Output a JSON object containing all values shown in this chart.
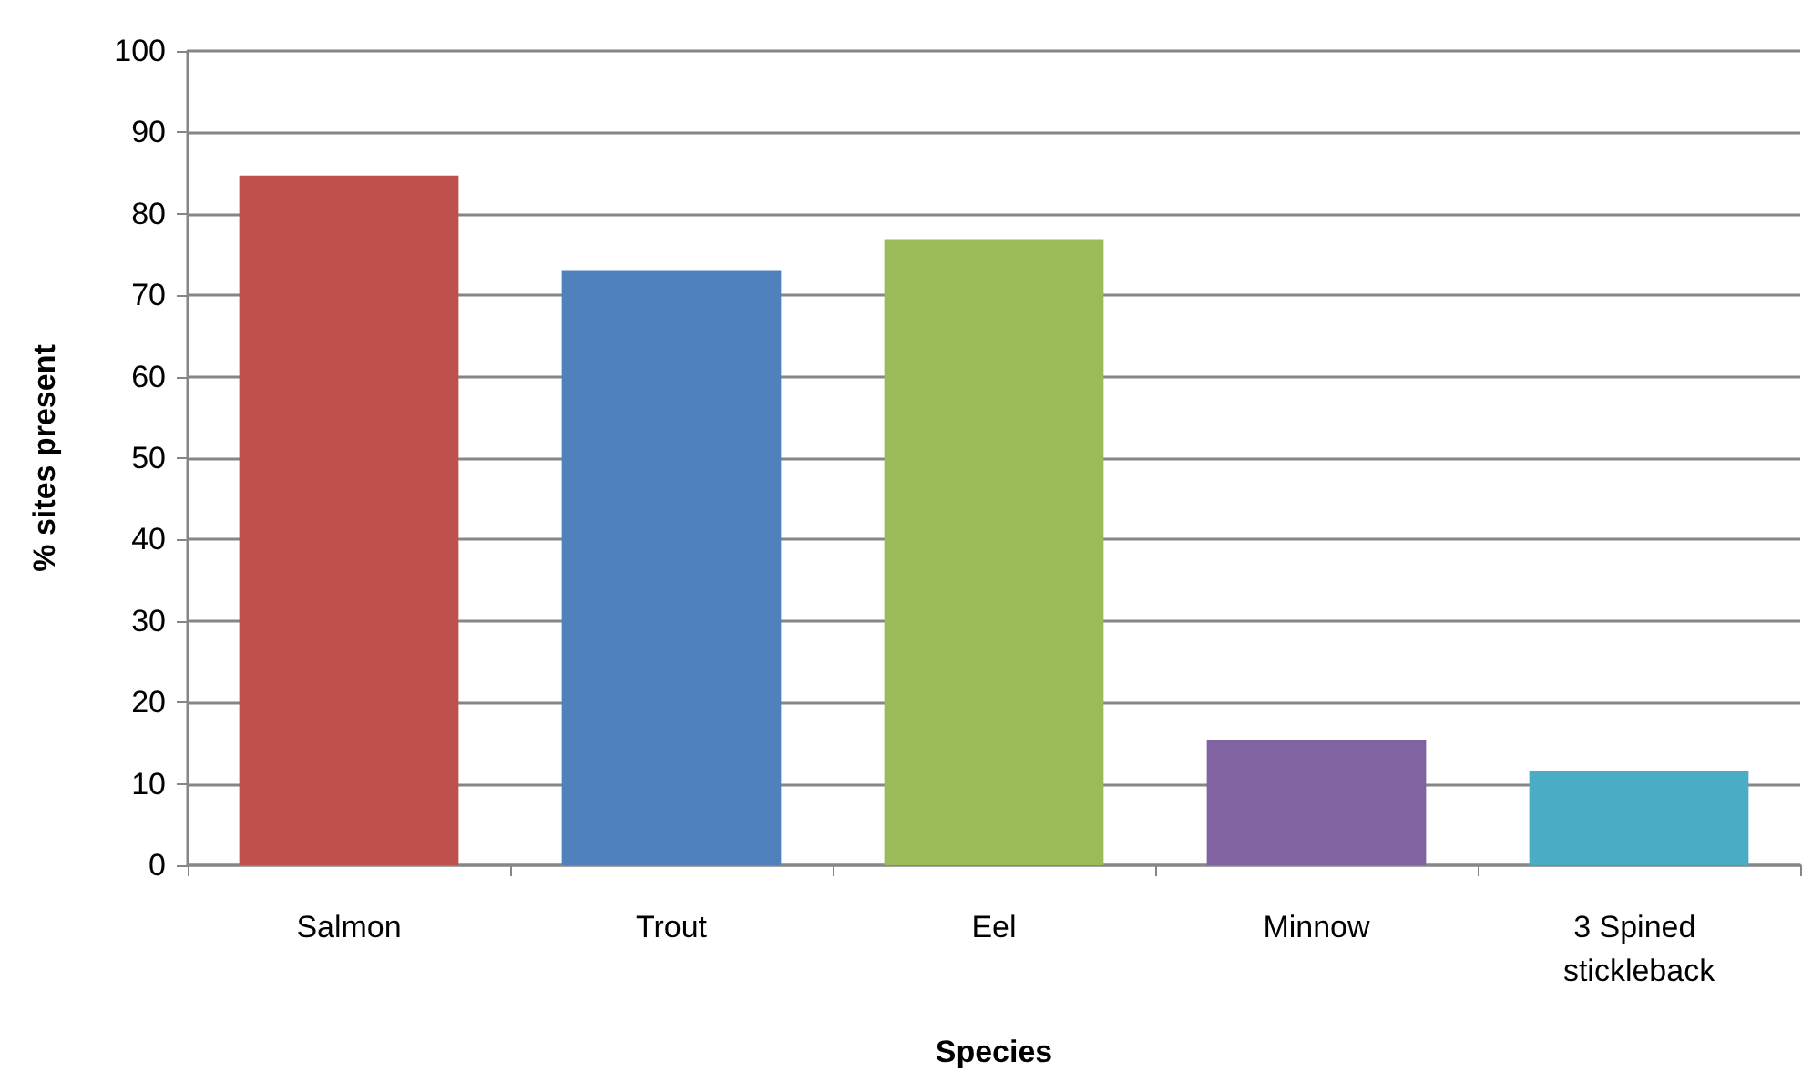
{
  "chart_data": {
    "type": "bar",
    "xlabel": "Species",
    "ylabel": "% sites present",
    "categories": [
      "Salmon",
      "Trout",
      "Eel",
      "Minnow",
      "3 Spined stickleback"
    ],
    "values": [
      84.7,
      73.1,
      76.9,
      15.4,
      11.6
    ],
    "colors": [
      "#c0504d",
      "#4f81bd",
      "#9bbb59",
      "#8064a2",
      "#4bacc6"
    ],
    "ylim": [
      0,
      100
    ],
    "yticks": [
      0,
      10,
      20,
      30,
      40,
      50,
      60,
      70,
      80,
      90,
      100
    ],
    "grid": "y"
  }
}
